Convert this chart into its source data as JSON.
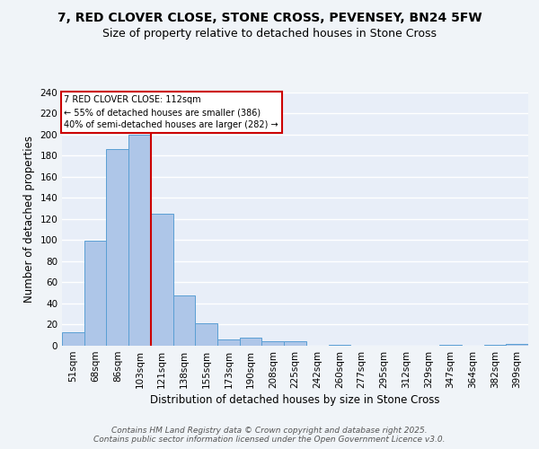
{
  "title": "7, RED CLOVER CLOSE, STONE CROSS, PEVENSEY, BN24 5FW",
  "subtitle": "Size of property relative to detached houses in Stone Cross",
  "xlabel": "Distribution of detached houses by size in Stone Cross",
  "ylabel": "Number of detached properties",
  "bar_labels": [
    "51sqm",
    "68sqm",
    "86sqm",
    "103sqm",
    "121sqm",
    "138sqm",
    "155sqm",
    "173sqm",
    "190sqm",
    "208sqm",
    "225sqm",
    "242sqm",
    "260sqm",
    "277sqm",
    "295sqm",
    "312sqm",
    "329sqm",
    "347sqm",
    "364sqm",
    "382sqm",
    "399sqm"
  ],
  "bar_values": [
    13,
    99,
    186,
    200,
    125,
    48,
    21,
    6,
    8,
    4,
    4,
    0,
    1,
    0,
    0,
    0,
    0,
    1,
    0,
    1,
    2
  ],
  "bar_color": "#aec6e8",
  "bar_edge_color": "#5a9fd4",
  "background_color": "#e8eef8",
  "grid_color": "#ffffff",
  "property_line_color": "#cc0000",
  "annotation_text": "7 RED CLOVER CLOSE: 112sqm\n← 55% of detached houses are smaller (386)\n40% of semi-detached houses are larger (282) →",
  "annotation_box_color": "#cc0000",
  "ylim": [
    0,
    240
  ],
  "yticks": [
    0,
    20,
    40,
    60,
    80,
    100,
    120,
    140,
    160,
    180,
    200,
    220,
    240
  ],
  "footer": "Contains HM Land Registry data © Crown copyright and database right 2025.\nContains public sector information licensed under the Open Government Licence v3.0.",
  "title_fontsize": 10,
  "subtitle_fontsize": 9,
  "axis_label_fontsize": 8.5,
  "tick_fontsize": 7.5,
  "footer_fontsize": 6.5
}
